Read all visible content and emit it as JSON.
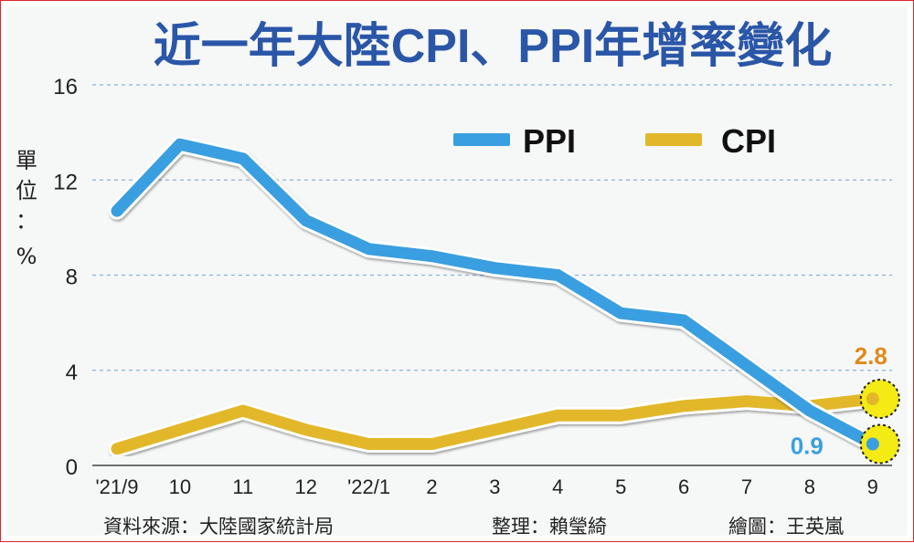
{
  "header": {
    "title": "近一年大陸CPI、PPI年增率變化"
  },
  "unit_label": [
    "單",
    "位",
    "：",
    "%"
  ],
  "footer": {
    "source": "資料來源：大陸國家統計局",
    "editor": "整理：賴瑩綺",
    "illustrator": "繪圖：王英嵐"
  },
  "colors": {
    "ppi": "#3a9fe0",
    "cpi": "#e2b82a",
    "ppi_label": "#3a9fe0",
    "cpi_label": "#e08a1a",
    "title": "#2a56a8",
    "highlight": "#f4ea14"
  },
  "chart_data": {
    "type": "line",
    "categories": [
      "'21/9",
      "10",
      "11",
      "12",
      "'22/1",
      "2",
      "3",
      "4",
      "5",
      "6",
      "7",
      "8",
      "9"
    ],
    "series": [
      {
        "name": "PPI",
        "values": [
          10.7,
          13.5,
          12.9,
          10.3,
          9.1,
          8.8,
          8.3,
          8.0,
          6.4,
          6.1,
          4.2,
          2.3,
          0.9
        ]
      },
      {
        "name": "CPI",
        "values": [
          0.7,
          1.5,
          2.3,
          1.5,
          0.9,
          0.9,
          1.5,
          2.1,
          2.1,
          2.5,
          2.7,
          2.5,
          2.8
        ]
      }
    ],
    "y_ticks": [
      "0",
      "4",
      "8",
      "12",
      "16"
    ],
    "ylim": [
      0,
      16
    ],
    "grid": "horizontal dashed",
    "legend_position": "top-right",
    "annotations": [
      {
        "series": "CPI",
        "category": "9",
        "text": "2.8"
      },
      {
        "series": "PPI",
        "category": "9",
        "text": "0.9"
      }
    ]
  }
}
